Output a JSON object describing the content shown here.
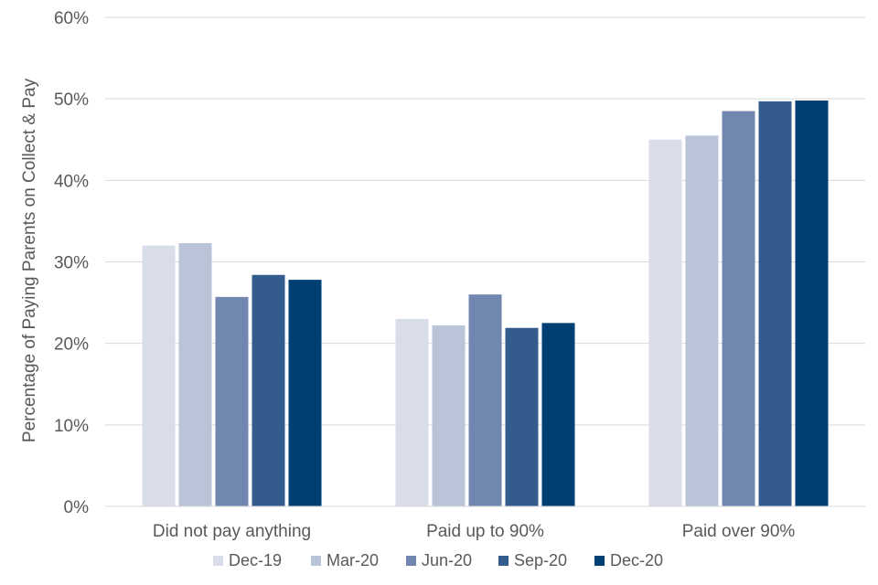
{
  "chart_data": {
    "type": "bar",
    "title": "",
    "xlabel": "",
    "ylabel": "Percentage of Paying Parents on Collect & Pay",
    "categories": [
      "Did not pay anything",
      "Paid up to 90%",
      "Paid over 90%"
    ],
    "series": [
      {
        "name": "Dec-19",
        "color": "#D9DDE9",
        "values": [
          32.0,
          23.0,
          45.0
        ]
      },
      {
        "name": "Mar-20",
        "color": "#BAC4D8",
        "values": [
          32.3,
          22.2,
          45.5
        ]
      },
      {
        "name": "Jun-20",
        "color": "#7287B0",
        "values": [
          25.7,
          26.0,
          48.5
        ]
      },
      {
        "name": "Sep-20",
        "color": "#335B8E",
        "values": [
          28.4,
          21.9,
          49.7
        ]
      },
      {
        "name": "Dec-20",
        "color": "#003F74",
        "values": [
          27.8,
          22.5,
          49.8
        ]
      }
    ],
    "ylim": [
      0,
      60
    ],
    "yticks": [
      0,
      10,
      20,
      30,
      40,
      50,
      60
    ],
    "ytick_labels": [
      "0%",
      "10%",
      "20%",
      "30%",
      "40%",
      "50%",
      "60%"
    ],
    "grid": true,
    "gridline_color": "#D9D9D9",
    "legend_position": "bottom"
  }
}
